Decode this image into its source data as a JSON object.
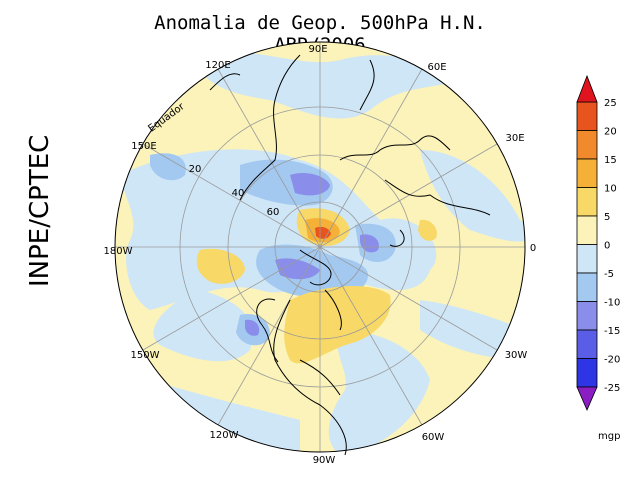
{
  "title": "Anomalia de Geop. 500hPa H.N. ABR/2006",
  "side_label": "INPE/CPTEC",
  "longitude_labels": [
    "90E",
    "60E",
    "30E",
    "0",
    "30W",
    "60W",
    "90W",
    "120W",
    "150W",
    "180W",
    "150E",
    "120E"
  ],
  "latitude_labels": [
    "20",
    "40",
    "60"
  ],
  "equator_label": "Equador",
  "colorbar": {
    "units": "mgp",
    "ticks": [
      "25",
      "20",
      "15",
      "10",
      "5",
      "0",
      "-5",
      "-10",
      "-15",
      "-20",
      "-25"
    ],
    "colors": [
      "#e8541e",
      "#f08a2c",
      "#f5b038",
      "#f8d867",
      "#fbf3b9",
      "#cfe6f7",
      "#a3c9f1",
      "#8a8eea",
      "#5a5de6",
      "#2e35e4"
    ],
    "top_arrow_color": "#e0141e",
    "bottom_arrow_color": "#8a1ec2"
  },
  "map_colors": {
    "positive_light": "#fbf3b9",
    "positive_mid": "#f8d867",
    "positive_strong": "#f5b038",
    "positive_max": "#e8541e",
    "negative_light": "#cfe6f7",
    "negative_mid": "#a3c9f1",
    "negative_strong": "#8a8eea"
  }
}
